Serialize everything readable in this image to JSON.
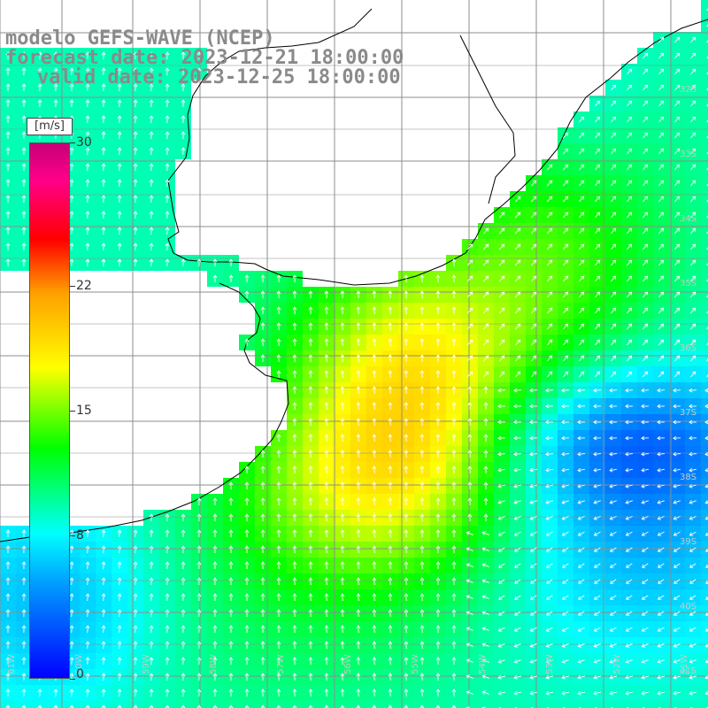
{
  "title": {
    "line1": "modelo GEFS-WAVE (NCEP)",
    "line2": "forecast date: 2023-12-21 18:00:00",
    "line3": "valid date: 2023-12-25 18:00:00"
  },
  "colorbar": {
    "unit": "[m/s]",
    "min": 0,
    "max": 30,
    "ticks": [
      {
        "label": "30",
        "value": 30
      },
      {
        "label": "22",
        "value": 22
      },
      {
        "label": "15",
        "value": 15
      },
      {
        "label": "8",
        "value": 8
      },
      {
        "label": "0",
        "value": 0
      }
    ]
  },
  "map": {
    "lat_labels": [
      "32S",
      "33S",
      "34S",
      "35S",
      "36S",
      "37S",
      "38S",
      "39S",
      "40S",
      "41S"
    ],
    "lon_labels": [
      "61W",
      "60W",
      "59W",
      "58W",
      "57W",
      "56W",
      "55W",
      "54W",
      "53W",
      "52W",
      "51W"
    ],
    "grid_color": "#8c8c8c",
    "coast_color": "#000000",
    "arrow_color": "#ffffff"
  },
  "colors": {
    "text_gray": "#8a8a8a",
    "land": "#ffffff"
  }
}
